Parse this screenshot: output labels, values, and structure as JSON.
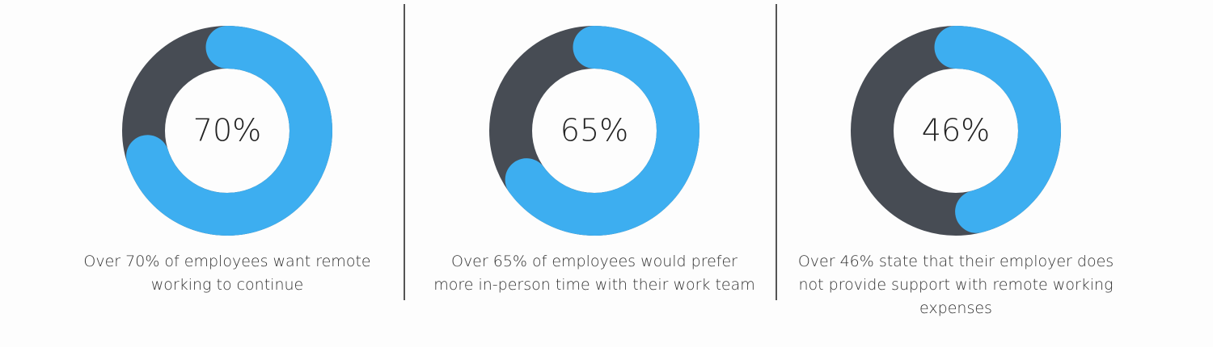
{
  "chart_data": [
    {
      "type": "donut",
      "values": [
        70
      ],
      "value_labels": [
        "70%"
      ],
      "color": "#3daef0",
      "track_color": "#474c54",
      "caption": "Over 70% of employees want remote working to continue"
    },
    {
      "type": "donut",
      "values": [
        65
      ],
      "value_labels": [
        "65%"
      ],
      "color": "#3daef0",
      "track_color": "#474c54",
      "caption": "Over 65% of employees would prefer more in-person time with their work team"
    },
    {
      "type": "donut",
      "values": [
        46
      ],
      "value_labels": [
        "46%"
      ],
      "color": "#3daef0",
      "track_color": "#474c54",
      "caption": "Over 46% state that their employer does not provide support with remote working expenses"
    }
  ]
}
